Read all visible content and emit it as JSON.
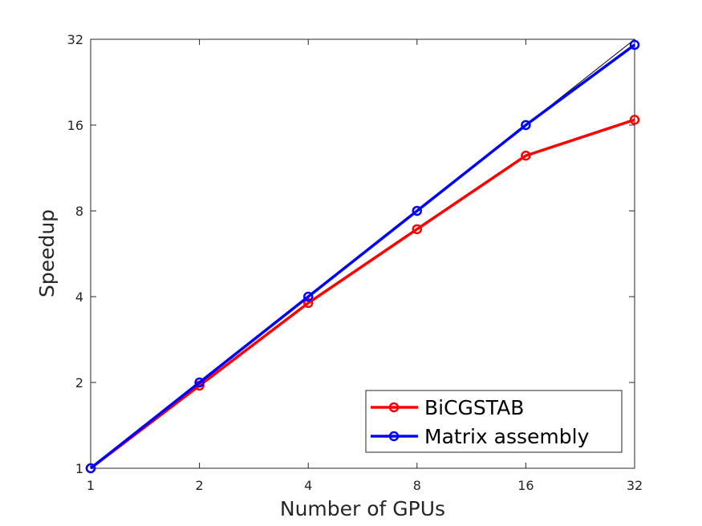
{
  "chart_data": {
    "type": "line",
    "x_scale": "log2",
    "y_scale": "log2",
    "x": [
      1,
      2,
      4,
      8,
      16,
      32
    ],
    "xticks": [
      "1",
      "2",
      "4",
      "8",
      "16",
      "32"
    ],
    "yticks": [
      "1",
      "2",
      "4",
      "8",
      "16",
      "32"
    ],
    "xlim": [
      1,
      32
    ],
    "ylim": [
      1,
      32
    ],
    "xlabel": "Number of GPUs",
    "ylabel": "Speedup",
    "grid": false,
    "legend_position": "bottom-right",
    "reference_line": {
      "x": [
        1,
        32
      ],
      "y": [
        1,
        32
      ],
      "color": "#000000"
    },
    "series": [
      {
        "name": "BiCGSTAB",
        "color": "#ff0000",
        "marker": "circle",
        "values": [
          1.0,
          1.95,
          3.8,
          6.9,
          12.5,
          16.7
        ]
      },
      {
        "name": "Matrix assembly",
        "color": "#0000ff",
        "marker": "circle",
        "values": [
          1.0,
          2.0,
          4.0,
          8.0,
          16.0,
          30.6
        ]
      }
    ]
  }
}
